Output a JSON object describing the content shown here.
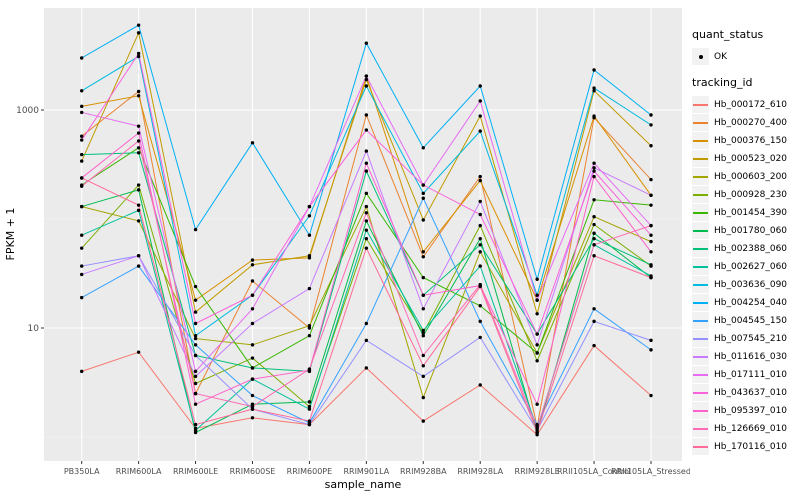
{
  "chart_data": {
    "type": "line",
    "title": "",
    "xlabel": "sample_name",
    "ylabel": "FPKM + 1",
    "x_categories": [
      "PB350LA",
      "RRIM600LA",
      "RRIM600LE",
      "RRIM600SE",
      "RRIM600PE",
      "RRIM901LA",
      "RRIM928BA",
      "RRIM928LA",
      "RRIM928LE",
      "RRII105LA_Control",
      "RRII105LA_Stressed"
    ],
    "y_axis": {
      "scale": "log10",
      "major_ticks": [
        10,
        1000
      ],
      "tick_labels": [
        "10",
        "1000"
      ],
      "minor_ticks": [
        1,
        100
      ],
      "ylim": [
        0.6,
        8600
      ]
    },
    "legend": {
      "quant_status": {
        "title": "quant_status",
        "items": [
          {
            "label": "OK",
            "marker": "point",
            "color": "#000000"
          }
        ]
      },
      "tracking_id": {
        "title": "tracking_id"
      }
    },
    "grid": true,
    "legend_position": "right",
    "series": [
      {
        "name": "Hb_000172_610",
        "color": "#F8766D",
        "values": [
          4,
          6,
          1.2,
          1.5,
          1.3,
          4.3,
          1.4,
          3,
          1.05,
          6.9,
          2.4
        ]
      },
      {
        "name": "Hb_000270_400",
        "color": "#EA8331",
        "values": [
          575,
          1480,
          2.5,
          27,
          10,
          900,
          45,
          245,
          1.25,
          850,
          230
        ]
      },
      {
        "name": "Hb_000376_150",
        "color": "#D89000",
        "values": [
          1080,
          1350,
          18,
          42,
          44,
          2050,
          50,
          225,
          18,
          880,
          165
        ]
      },
      {
        "name": "Hb_000523_020",
        "color": "#C09B00",
        "values": [
          340,
          5100,
          14,
          38,
          46,
          1900,
          98,
          880,
          13.5,
          1500,
          470
        ]
      },
      {
        "name": "Hb_000603_200",
        "color": "#A3A500",
        "values": [
          130,
          96,
          8,
          7,
          10.5,
          130,
          2.3,
          50,
          5.9,
          105,
          62
        ]
      },
      {
        "name": "Hb_000928_230",
        "color": "#7CAE00",
        "values": [
          54,
          205,
          3.1,
          5.3,
          1.9,
          66,
          9,
          87,
          5,
          89,
          37
        ]
      },
      {
        "name": "Hb_001454_390",
        "color": "#39B600",
        "values": [
          205,
          450,
          24,
          4.3,
          8.5,
          172,
          29,
          16,
          5.9,
          150,
          134
        ]
      },
      {
        "name": "Hb_001780_060",
        "color": "#00BB4E",
        "values": [
          130,
          185,
          1.1,
          2,
          2.1,
          96,
          8.5,
          66,
          1.1,
          74,
          29
        ]
      },
      {
        "name": "Hb_002388_060",
        "color": "#00C079",
        "values": [
          390,
          405,
          5.6,
          4.3,
          4,
          275,
          20,
          58,
          8.8,
          66,
          38
        ]
      },
      {
        "name": "Hb_002627_060",
        "color": "#00C19C",
        "values": [
          71,
          120,
          1.15,
          3.4,
          1.8,
          79,
          9.5,
          37,
          1.2,
          58,
          30
        ]
      },
      {
        "name": "Hb_003636_090",
        "color": "#00BAE0",
        "values": [
          1500,
          3100,
          8.5,
          20,
          107,
          1660,
          172,
          640,
          20,
          1590,
          730
        ]
      },
      {
        "name": "Hb_004254_040",
        "color": "#00B0F6",
        "values": [
          3000,
          6000,
          80,
          500,
          71,
          4100,
          450,
          1660,
          28,
          2330,
          900
        ]
      },
      {
        "name": "Hb_004545_150",
        "color": "#35A2FF",
        "values": [
          19,
          37,
          7,
          2.4,
          1.35,
          11,
          155,
          11.5,
          1.3,
          15,
          6.3
        ]
      },
      {
        "name": "Hb_007545_210",
        "color": "#9590FF",
        "values": [
          37,
          46,
          5.6,
          1.8,
          1.3,
          7.7,
          3.6,
          8.2,
          1.15,
          11.5,
          7.7
        ]
      },
      {
        "name": "Hb_011616_030",
        "color": "#C77CFF",
        "values": [
          31,
          46,
          3.6,
          11,
          23,
          420,
          15,
          145,
          7,
          295,
          165
        ]
      },
      {
        "name": "Hb_017111_010",
        "color": "#E76BF3",
        "values": [
          950,
          710,
          4,
          15,
          130,
          2050,
          205,
          1210,
          18,
          325,
          87
        ]
      },
      {
        "name": "Hb_043637_010",
        "color": "#FA62DB",
        "values": [
          530,
          3300,
          11,
          20,
          130,
          655,
          205,
          110,
          8.8,
          275,
          71
        ]
      },
      {
        "name": "Hb_095397_010",
        "color": "#FF61CC",
        "values": [
          238,
          615,
          2,
          3.4,
          4.1,
          325,
          20,
          24.5,
          2,
          245,
          50
        ]
      },
      {
        "name": "Hb_126669_010",
        "color": "#FF6BB5",
        "values": [
          200,
          520,
          2.5,
          1.9,
          4.2,
          114,
          5.6,
          25,
          1.2,
          58,
          87
        ]
      },
      {
        "name": "Hb_170116_010",
        "color": "#FF6A98",
        "values": [
          238,
          134,
          1.3,
          1.8,
          1.4,
          54,
          4.5,
          24,
          1.1,
          46,
          29
        ]
      }
    ]
  },
  "style": {
    "panel_bg": "#EBEBEB",
    "grid_color": "#FFFFFF",
    "tick_text_color": "#4D4D4D",
    "axis_title_color": "#000000",
    "point_color": "#000000",
    "legend_key_bg": "#F2F2F2"
  }
}
